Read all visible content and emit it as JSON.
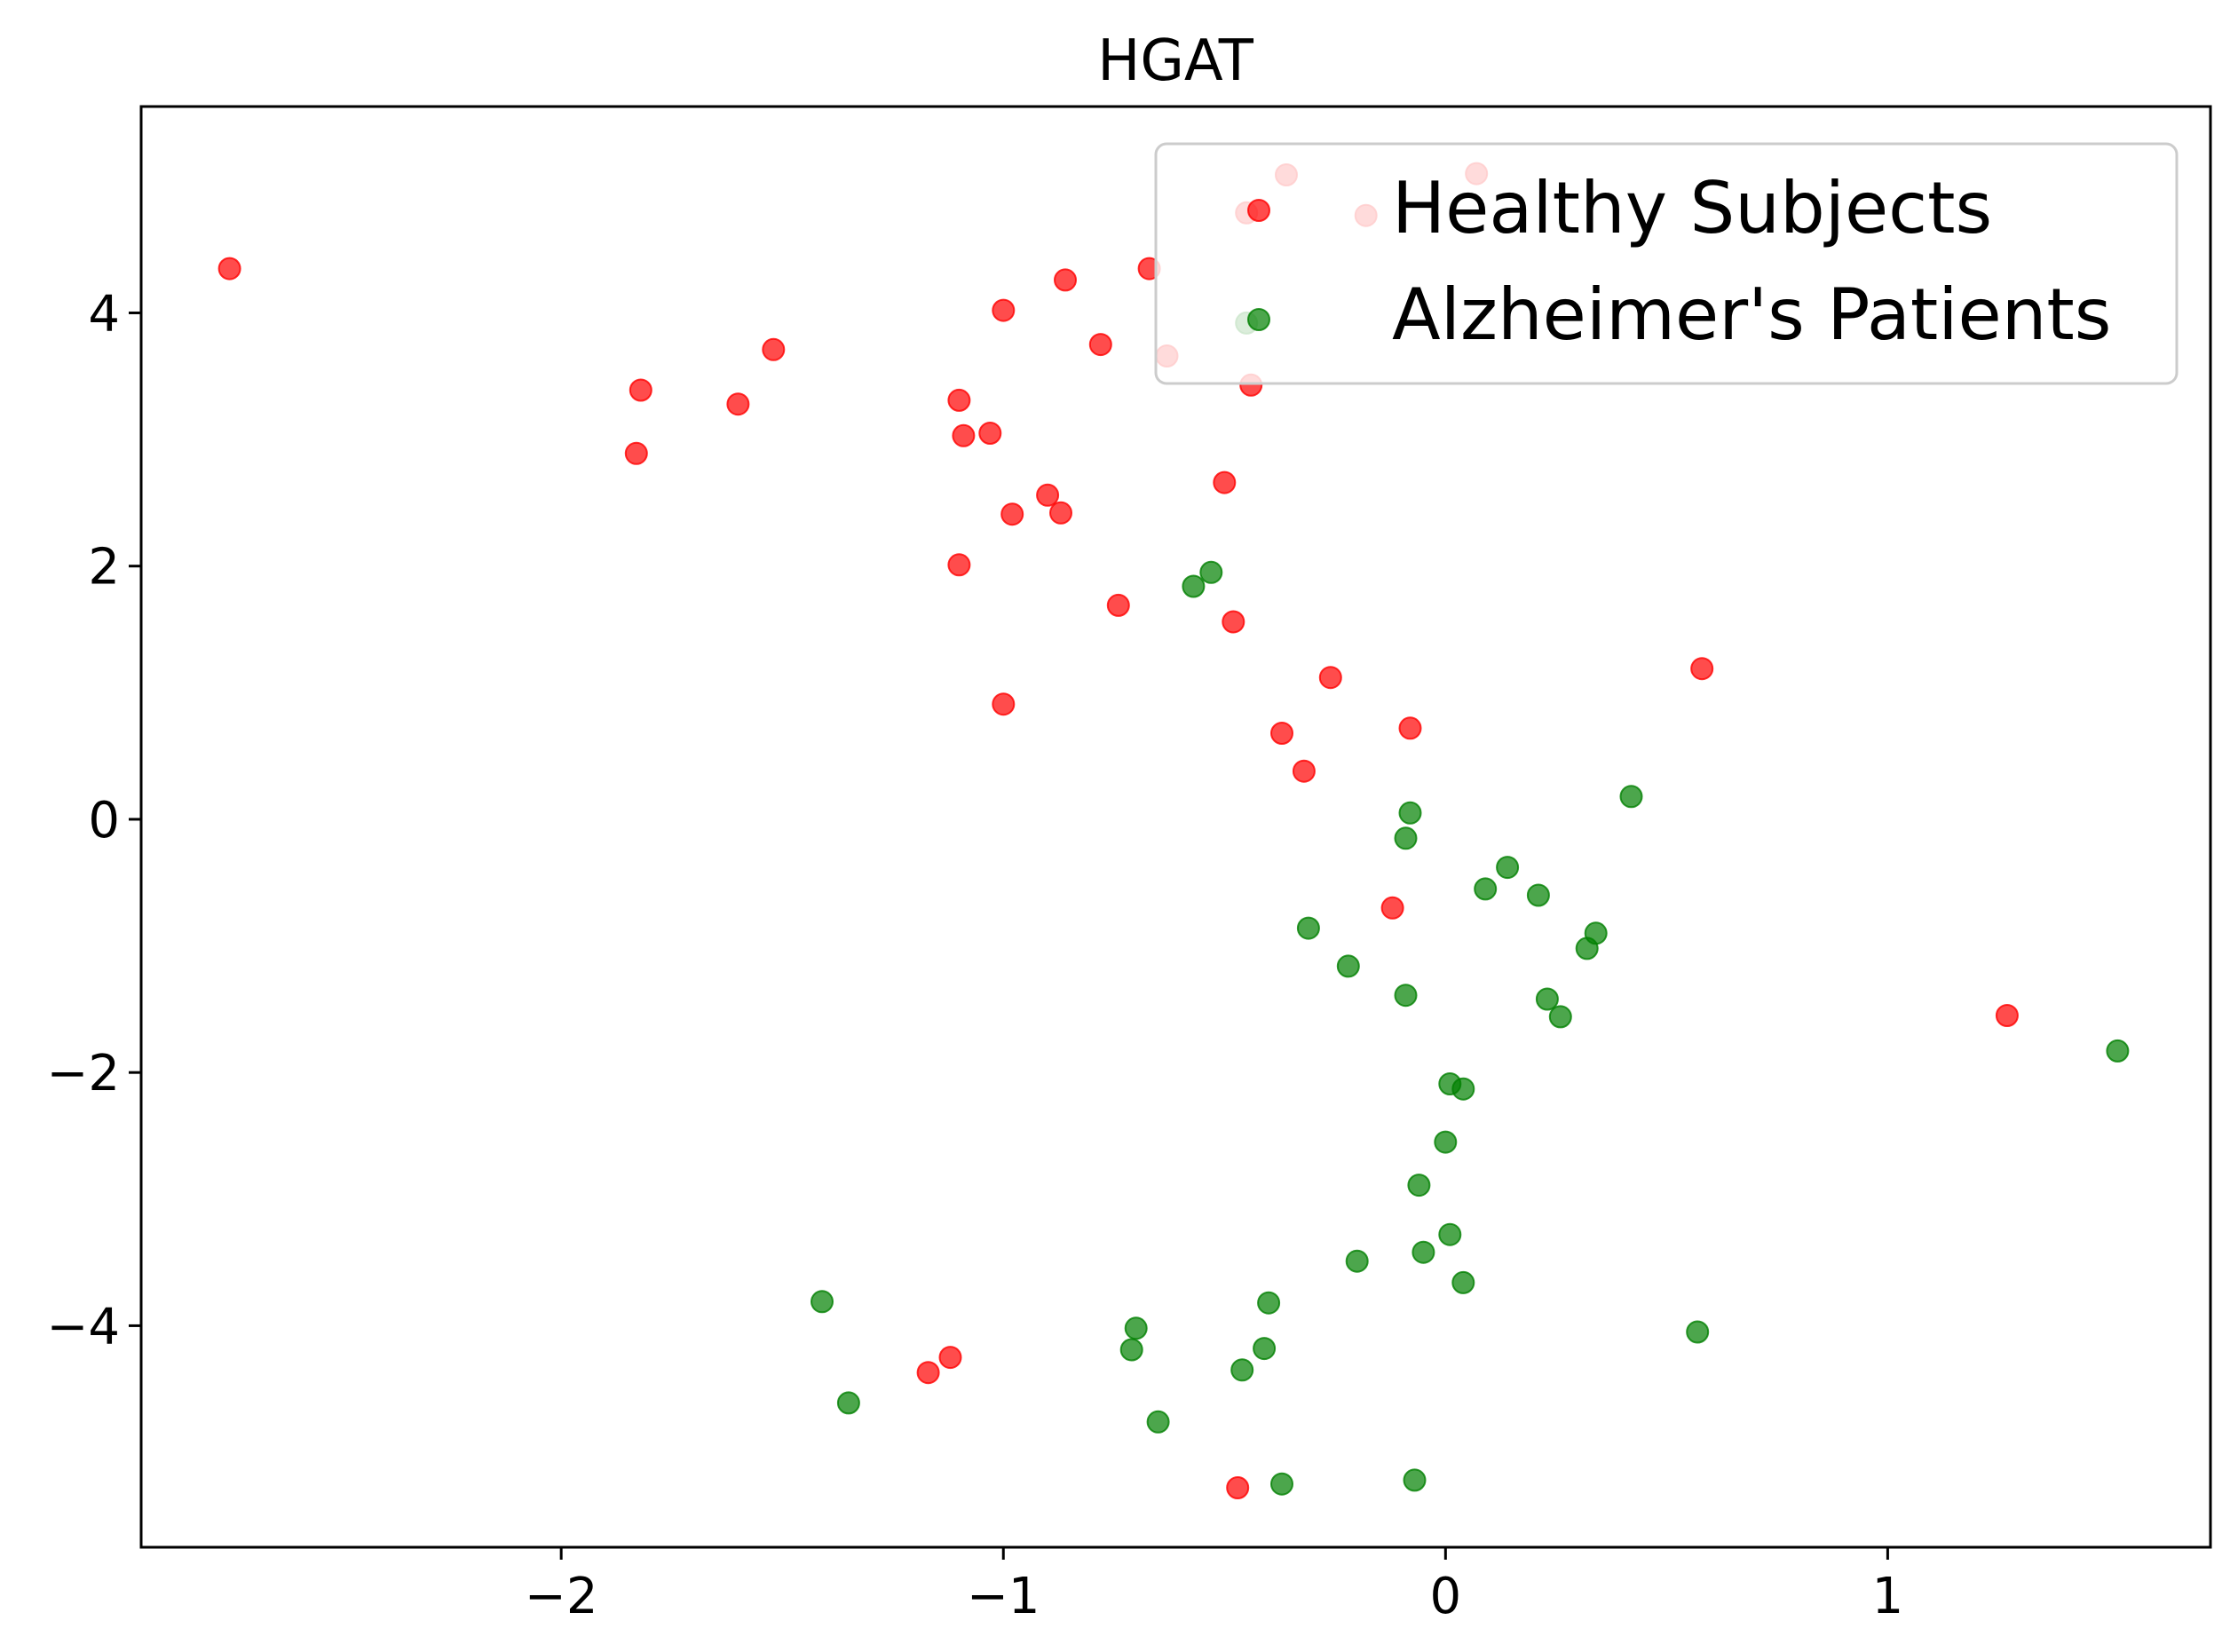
{
  "chart_data": {
    "type": "scatter",
    "title": "HGAT",
    "xlabel": "",
    "ylabel": "",
    "xlim": [
      -2.95,
      1.73
    ],
    "ylim": [
      -5.75,
      5.63
    ],
    "xticks": [
      -2,
      -1,
      0,
      1
    ],
    "xtick_labels": [
      "−2",
      "−1",
      "0",
      "1"
    ],
    "yticks": [
      -4,
      -2,
      0,
      2,
      4
    ],
    "ytick_labels": [
      "−4",
      "−2",
      "0",
      "2",
      "4"
    ],
    "grid": false,
    "legend_position": "top-right",
    "series": [
      {
        "name": "Healthy Subjects",
        "color": "#ff0000",
        "points": [
          [
            -2.75,
            4.35
          ],
          [
            -1.82,
            3.39
          ],
          [
            -1.83,
            2.89
          ],
          [
            -1.6,
            3.28
          ],
          [
            -1.52,
            3.71
          ],
          [
            -1.1,
            3.31
          ],
          [
            -1.09,
            3.03
          ],
          [
            -1.03,
            3.05
          ],
          [
            -1.0,
            4.02
          ],
          [
            -0.86,
            4.26
          ],
          [
            -0.78,
            3.75
          ],
          [
            -0.67,
            4.35
          ],
          [
            -0.63,
            3.66
          ],
          [
            -0.45,
            4.79
          ],
          [
            -0.36,
            5.09
          ],
          [
            -0.18,
            4.77
          ],
          [
            0.07,
            5.1
          ],
          [
            -0.44,
            3.43
          ],
          [
            -0.9,
            2.56
          ],
          [
            -0.98,
            2.41
          ],
          [
            -0.87,
            2.42
          ],
          [
            -0.5,
            2.66
          ],
          [
            -1.1,
            2.01
          ],
          [
            -0.74,
            1.69
          ],
          [
            -0.48,
            1.56
          ],
          [
            -1.0,
            0.91
          ],
          [
            -0.26,
            1.12
          ],
          [
            -0.37,
            0.68
          ],
          [
            -0.32,
            0.38
          ],
          [
            -0.08,
            0.72
          ],
          [
            -0.12,
            -0.7
          ],
          [
            0.58,
            1.19
          ],
          [
            1.27,
            -1.55
          ],
          [
            -1.17,
            -4.37
          ],
          [
            -1.12,
            -4.25
          ],
          [
            -0.47,
            -5.28
          ]
        ]
      },
      {
        "name": "Alzheimer's Patients",
        "color": "#008000",
        "points": [
          [
            -0.45,
            3.92
          ],
          [
            -0.53,
            1.95
          ],
          [
            -0.57,
            1.84
          ],
          [
            -0.08,
            0.05
          ],
          [
            -0.09,
            -0.15
          ],
          [
            0.42,
            0.18
          ],
          [
            0.09,
            -0.55
          ],
          [
            0.14,
            -0.38
          ],
          [
            0.21,
            -0.6
          ],
          [
            0.32,
            -1.02
          ],
          [
            0.34,
            -0.9
          ],
          [
            -0.31,
            -0.86
          ],
          [
            -0.22,
            -1.16
          ],
          [
            -0.09,
            -1.39
          ],
          [
            0.23,
            -1.42
          ],
          [
            0.26,
            -1.56
          ],
          [
            1.52,
            -1.83
          ],
          [
            0.01,
            -2.09
          ],
          [
            0.04,
            -2.13
          ],
          [
            0.0,
            -2.55
          ],
          [
            -0.06,
            -2.89
          ],
          [
            0.01,
            -3.28
          ],
          [
            -0.05,
            -3.42
          ],
          [
            0.04,
            -3.66
          ],
          [
            -0.2,
            -3.49
          ],
          [
            -0.4,
            -3.82
          ],
          [
            -0.41,
            -4.18
          ],
          [
            -0.46,
            -4.35
          ],
          [
            -0.7,
            -4.02
          ],
          [
            -0.71,
            -4.19
          ],
          [
            -0.65,
            -4.76
          ],
          [
            -1.41,
            -3.81
          ],
          [
            -1.35,
            -4.61
          ],
          [
            -0.37,
            -5.25
          ],
          [
            -0.07,
            -5.22
          ],
          [
            0.57,
            -4.05
          ]
        ]
      }
    ]
  }
}
